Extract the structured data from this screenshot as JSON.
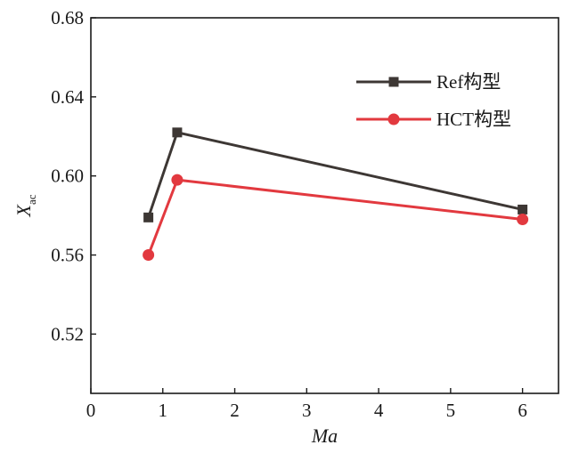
{
  "chart_data": {
    "type": "line",
    "xlabel": "Ma",
    "ylabel": {
      "main": "X",
      "sub": "ac"
    },
    "xlim": [
      0,
      6.5
    ],
    "ylim": [
      0.49,
      0.68
    ],
    "xticks": [
      "0",
      "1",
      "2",
      "3",
      "4",
      "5",
      "6"
    ],
    "yticks": [
      "0.52",
      "0.56",
      "0.60",
      "0.64",
      "0.68"
    ],
    "legend_position": "top-right",
    "grid": false,
    "series": [
      {
        "name": "Ref构型",
        "color": "#3d3734",
        "marker": "square",
        "x": [
          0.8,
          1.2,
          6
        ],
        "y": [
          0.579,
          0.622,
          0.583
        ]
      },
      {
        "name": "HCT构型",
        "color": "#e2393f",
        "marker": "circle",
        "x": [
          0.8,
          1.2,
          6
        ],
        "y": [
          0.56,
          0.598,
          0.578
        ]
      }
    ]
  }
}
